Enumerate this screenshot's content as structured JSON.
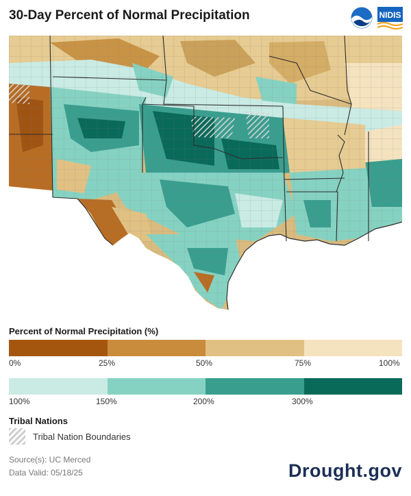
{
  "header": {
    "title": "30-Day Percent of Normal Precipitation",
    "logos": [
      {
        "name": "NOAA",
        "label": "NOAA"
      },
      {
        "name": "NIDIS",
        "label": "NIDIS"
      }
    ]
  },
  "map": {
    "region": "Southern Plains",
    "colors": {
      "water_bg": "#ffffff",
      "outline": "#2b2b2b",
      "county_line": "#8a8a8a"
    }
  },
  "legend": {
    "title": "Percent of Normal Precipitation (%)",
    "dry": {
      "colors": [
        "#a4560f",
        "#c98b3c",
        "#e1c183",
        "#f5e3bf"
      ],
      "ticks": [
        "0%",
        "25%",
        "50%",
        "75%",
        "100%"
      ]
    },
    "wet": {
      "colors": [
        "#c9ebe4",
        "#86d2c2",
        "#3a9e8f",
        "#0a6a5a"
      ],
      "ticks": [
        "100%",
        "150%",
        "200%",
        "300%"
      ]
    }
  },
  "tribal": {
    "title": "Tribal Nations",
    "label": "Tribal Nation Boundaries"
  },
  "footer": {
    "source": "Source(s): UC Merced",
    "valid": "Data Valid: 05/18/25",
    "brand": "Drought.gov"
  }
}
